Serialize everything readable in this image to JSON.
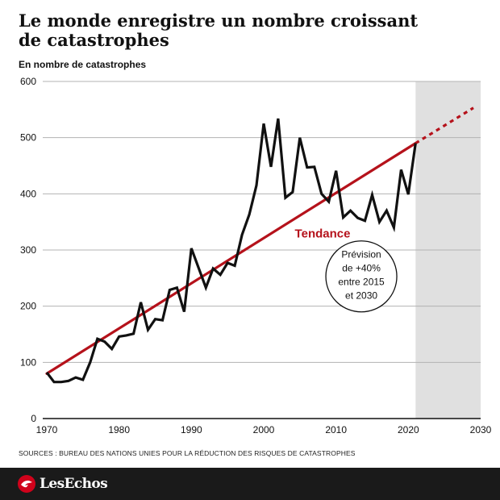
{
  "title": "Le monde enregistre un nombre croissant\nde catastrophes",
  "unit_label": "En nombre de catastrophes",
  "source": "SOURCES : BUREAU DES NATIONS UNIES POUR LA RÉDUCTION DES RISQUES DE CATASTROPHES",
  "brand": {
    "name": "LesEchos"
  },
  "colors": {
    "series": "#111111",
    "trend": "#b5121b",
    "forecast_band": "#e0e0e0",
    "grid": "#b3b3b3",
    "footer": "#1a1a1a"
  },
  "chart_data": {
    "type": "line",
    "title": "Le monde enregistre un nombre croissant de catastrophes",
    "ylabel": "En nombre de catastrophes",
    "xlabel": "",
    "xlim": [
      1970,
      2030
    ],
    "ylim": [
      0,
      600
    ],
    "x_ticks": [
      1970,
      1980,
      1990,
      2000,
      2010,
      2020,
      2030
    ],
    "y_ticks": [
      0,
      100,
      200,
      300,
      400,
      500,
      600
    ],
    "grid": "horizontal",
    "series": [
      {
        "x": [
          1970,
          1971,
          1972,
          1973,
          1974,
          1975,
          1976,
          1977,
          1978,
          1979,
          1980,
          1981,
          1982,
          1983,
          1984,
          1985,
          1986,
          1987,
          1988,
          1989,
          1990,
          1991,
          1992,
          1993,
          1994,
          1995,
          1996,
          1997,
          1998,
          1999,
          2000,
          2001,
          2002,
          2003,
          2004,
          2005,
          2006,
          2007,
          2008,
          2009,
          2010,
          2011,
          2012,
          2013,
          2014,
          2015,
          2016,
          2017,
          2018,
          2019,
          2020,
          2021
        ],
        "values": [
          82,
          65,
          65,
          67,
          73,
          69,
          100,
          142,
          137,
          124,
          146,
          148,
          151,
          207,
          158,
          177,
          175,
          229,
          233,
          190,
          303,
          268,
          233,
          267,
          256,
          277,
          272,
          327,
          363,
          415,
          525,
          448,
          534,
          393,
          403,
          500,
          447,
          448,
          400,
          386,
          441,
          358,
          370,
          357,
          352,
          398,
          350,
          370,
          340,
          443,
          399,
          490
        ]
      }
    ],
    "trend": {
      "label": "Tendance",
      "start": {
        "x": 1970,
        "y": 80
      },
      "end": {
        "x": 2021,
        "y": 490
      },
      "forecast_end": {
        "x": 2029,
        "y": 553
      }
    },
    "forecast_period": {
      "from": 2021,
      "to": 2030
    },
    "annotation": {
      "lines": [
        "Prévision",
        "de +40%",
        "entre 2015",
        "et 2030"
      ]
    }
  }
}
